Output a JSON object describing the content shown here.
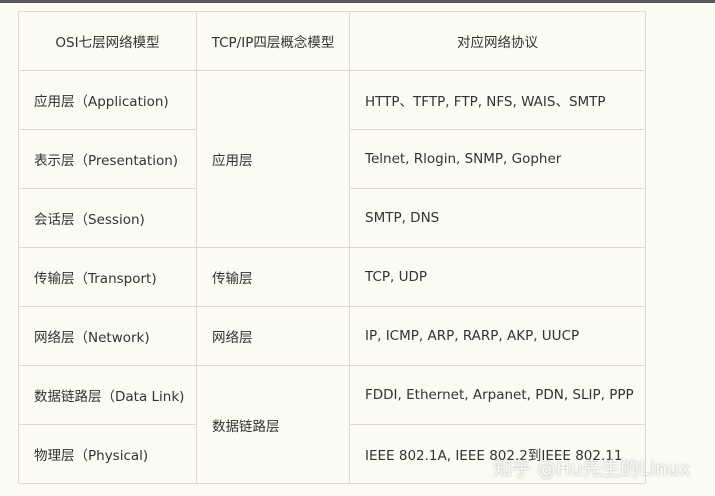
{
  "headers": [
    "OSI七层网络模型",
    "TCP/IP四层概念模型",
    "对应网络协议"
  ],
  "osi": [
    "应用层（Application)",
    "表示层（Presentation)",
    "会话层（Session)",
    "传输层（Transport)",
    "网络层（Network)",
    "数据链路层（Data Link)",
    "物理层（Physical)"
  ],
  "tcpip": [
    "应用层",
    "传输层",
    "网络层",
    "数据链路层"
  ],
  "protocols": [
    "HTTP、TFTP, FTP, NFS, WAIS、SMTP",
    "Telnet, Rlogin, SNMP, Gopher",
    "SMTP, DNS",
    "TCP, UDP",
    "IP, ICMP, ARP, RARP, AKP, UUCP",
    "FDDI, Ethernet, Arpanet, PDN, SLIP, PPP",
    "IEEE 802.1A, IEEE 802.2到IEEE 802.11"
  ],
  "watermark": "知乎 @Hu先生的Linux"
}
